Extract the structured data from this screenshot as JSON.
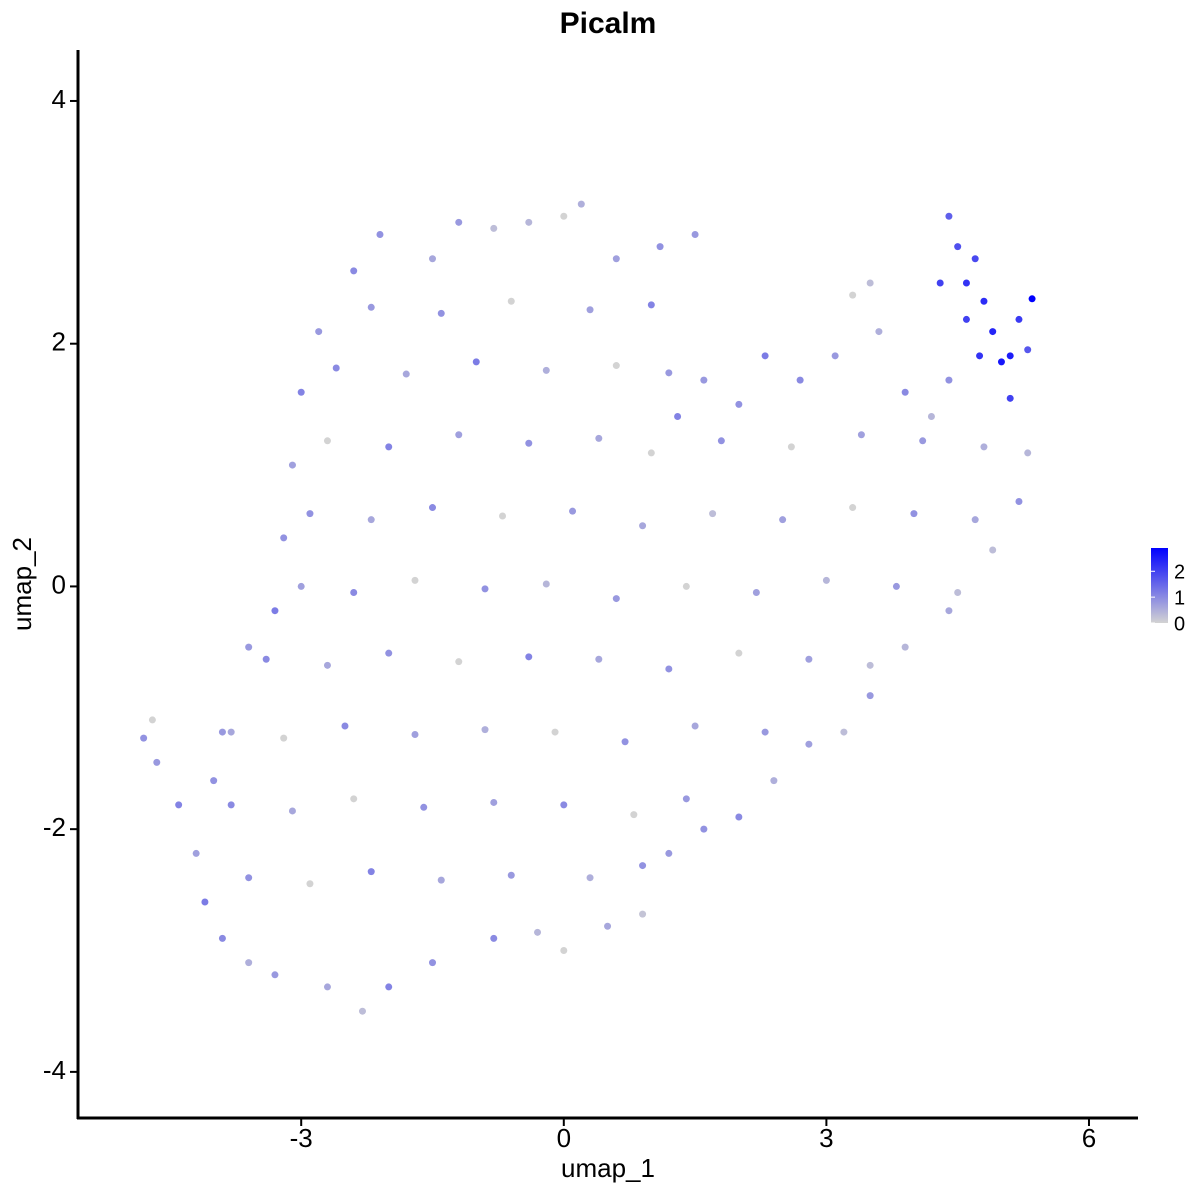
{
  "chart_data": {
    "type": "scatter",
    "title": "Picalm",
    "x_label": "umap_1",
    "y_label": "umap_2",
    "xlim": [
      -5.55,
      6.56
    ],
    "ylim": [
      -4.38,
      4.42
    ],
    "xticks": [
      -3,
      0,
      3,
      6
    ],
    "yticks": [
      -4,
      -2,
      0,
      2,
      4
    ],
    "color_low": "#d3d3d3",
    "color_high": "#0000ff",
    "clim": [
      0,
      2.9
    ],
    "colorbar_ticks": [
      0,
      1,
      2
    ],
    "x": [
      -4.8,
      -4.7,
      -4.65,
      -4.4,
      -4.2,
      -4.1,
      -3.9,
      -3.6,
      -3.3,
      -2.7,
      -2.3,
      -2.0,
      -1.5,
      -0.8,
      -0.3,
      0,
      0.5,
      0.9,
      1.2,
      1.6,
      2.0,
      2.4,
      2.8,
      3.2,
      3.5,
      3.9,
      4.4,
      4.9,
      5.2,
      5.3,
      4.4,
      4.5,
      4.3,
      4.6,
      4.7,
      4.8,
      4.9,
      5.0,
      5.1,
      5.2,
      5.35,
      5.3,
      5.1,
      4.75,
      4.6,
      4.4,
      4.2,
      3.9,
      3.6,
      3.3,
      3.5,
      3.1,
      2.7,
      2.3,
      2.0,
      1.6,
      1.3,
      -2.1,
      -1.5,
      -1.2,
      -0.8,
      -0.4,
      0,
      0.2,
      0.6,
      1.1,
      1.5,
      -2.4,
      -2.8,
      -3.0,
      -3.1,
      -3.2,
      -3.3,
      -3.6,
      -3.8,
      -4.0,
      -2.2,
      -1.4,
      -0.6,
      0.3,
      1.0,
      -2.6,
      -1.8,
      -1.0,
      -0.2,
      0.6,
      1.2,
      -2.7,
      -2.0,
      -1.2,
      -0.4,
      0.4,
      1.0,
      1.8,
      2.6,
      3.4,
      4.1,
      4.8,
      -2.9,
      -2.2,
      -1.5,
      -0.7,
      0.1,
      0.9,
      1.7,
      2.5,
      3.3,
      4.0,
      4.7,
      -3.0,
      -2.4,
      -1.7,
      -0.9,
      -0.2,
      0.6,
      1.4,
      2.2,
      3.0,
      3.8,
      4.5,
      -3.4,
      -2.7,
      -2.0,
      -1.2,
      -0.4,
      0.4,
      1.2,
      2.0,
      2.8,
      3.5,
      -3.9,
      -3.2,
      -2.5,
      -1.7,
      -0.9,
      -0.1,
      0.7,
      1.5,
      2.3,
      -3.8,
      -3.1,
      -2.4,
      -1.6,
      -0.8,
      0,
      0.8,
      1.4,
      -3.6,
      -2.9,
      -2.2,
      -1.4,
      -0.6,
      0.3,
      0.9
    ],
    "y": [
      -1.25,
      -1.1,
      -1.45,
      -1.8,
      -2.2,
      -2.6,
      -2.9,
      -3.1,
      -3.2,
      -3.3,
      -3.5,
      -3.3,
      -3.1,
      -2.9,
      -2.85,
      -3.0,
      -2.8,
      -2.7,
      -2.2,
      -2.0,
      -1.9,
      -1.6,
      -1.3,
      -1.2,
      -0.9,
      -0.5,
      -0.2,
      0.3,
      0.7,
      1.1,
      3.05,
      2.8,
      2.5,
      2.5,
      2.7,
      2.35,
      2.1,
      1.85,
      1.9,
      2.2,
      2.37,
      1.95,
      1.55,
      1.9,
      2.2,
      1.7,
      1.4,
      1.6,
      2.1,
      2.4,
      2.5,
      1.9,
      1.7,
      1.9,
      1.5,
      1.7,
      1.4,
      2.9,
      2.7,
      3.0,
      2.95,
      3.0,
      3.05,
      3.15,
      2.7,
      2.8,
      2.9,
      2.6,
      2.1,
      1.6,
      1.0,
      0.4,
      -0.2,
      -0.5,
      -1.2,
      -1.6,
      2.3,
      2.25,
      2.35,
      2.28,
      2.32,
      1.8,
      1.75,
      1.85,
      1.78,
      1.82,
      1.76,
      1.2,
      1.15,
      1.25,
      1.18,
      1.22,
      1.1,
      1.2,
      1.15,
      1.25,
      1.2,
      1.15,
      0.6,
      0.55,
      0.65,
      0.58,
      0.62,
      0.5,
      0.6,
      0.55,
      0.65,
      0.6,
      0.55,
      0,
      -0.05,
      0.05,
      -0.02,
      0.02,
      -0.1,
      0,
      -0.05,
      0.05,
      0,
      -0.05,
      -0.6,
      -0.65,
      -0.55,
      -0.62,
      -0.58,
      -0.6,
      -0.68,
      -0.55,
      -0.6,
      -0.65,
      -1.2,
      -1.25,
      -1.15,
      -1.22,
      -1.18,
      -1.2,
      -1.28,
      -1.15,
      -1.2,
      -1.8,
      -1.85,
      -1.75,
      -1.82,
      -1.78,
      -1.8,
      -1.88,
      -1.75,
      -2.4,
      -2.45,
      -2.35,
      -2.42,
      -2.38,
      -2.4,
      -2.3
    ],
    "values": [
      0.9,
      0,
      0.8,
      1.1,
      0.7,
      1.2,
      1.0,
      0.5,
      0.8,
      0.6,
      0.3,
      1.1,
      0.9,
      1.0,
      0.4,
      0,
      0.6,
      0.2,
      0.8,
      0.9,
      1.0,
      0.5,
      0.7,
      0.3,
      0.8,
      0.4,
      0.6,
      0.3,
      0.9,
      0.4,
      1.6,
      1.8,
      2.0,
      2.2,
      1.9,
      2.3,
      2.4,
      2.6,
      2.5,
      2.1,
      2.9,
      1.7,
      2.0,
      2.2,
      2.0,
      0.9,
      0.4,
      1.0,
      0.5,
      0,
      0.3,
      0.8,
      1.0,
      1.2,
      0.9,
      0.8,
      1.1,
      0.9,
      0.6,
      0.8,
      0.3,
      0.4,
      0,
      0.5,
      0.7,
      0.9,
      0.8,
      1.0,
      0.8,
      1.1,
      0.7,
      0.9,
      1.2,
      0.8,
      0.6,
      0.9,
      0.8,
      0.9,
      0,
      0.7,
      1.1,
      1.0,
      0.6,
      1.2,
      0.5,
      0,
      0.8,
      0,
      1.1,
      0.7,
      0.9,
      0.6,
      0,
      0.9,
      0,
      0.7,
      0.8,
      0.5,
      0.9,
      0.6,
      1.0,
      0,
      0.8,
      0.6,
      0.3,
      0.7,
      0,
      0.9,
      0.6,
      0.7,
      1.0,
      0,
      0.9,
      0.4,
      0.8,
      0,
      0.7,
      0.4,
      0.8,
      0.3,
      1.0,
      0.6,
      0.9,
      0,
      1.1,
      0.6,
      0.9,
      0,
      0.7,
      0.3,
      0.8,
      0,
      1.0,
      0.7,
      0.5,
      0,
      0.9,
      0.6,
      0.8,
      1.0,
      0.6,
      0,
      0.9,
      0.7,
      1.0,
      0,
      0.8,
      0.9,
      0,
      1.1,
      0.6,
      0.8,
      0.5,
      0.9
    ]
  }
}
